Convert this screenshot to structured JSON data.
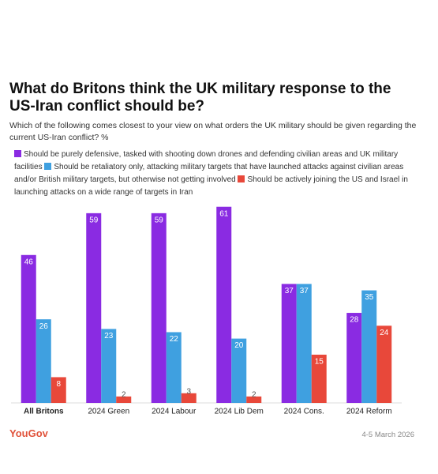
{
  "chart_data": {
    "type": "bar",
    "title": "What do Britons think the UK military response to the US-Iran conflict should be?",
    "subtitle": "Which of the following comes closest to your view on what orders the UK military should be given regarding the current US-Iran conflict? %",
    "categories": [
      "All Britons",
      "2024 Green",
      "2024 Labour",
      "2024 Lib Dem",
      "2024 Cons.",
      "2024 Reform"
    ],
    "series": [
      {
        "name": "Should be purely defensive, tasked with shooting down drones and defending civilian areas and UK military facilities",
        "color": "#8a2be2",
        "values": [
          46,
          59,
          59,
          61,
          37,
          28
        ]
      },
      {
        "name": "Should be retaliatory only, attacking military targets that have launched attacks against civilian areas and/or British military targets, but otherwise not getting involved",
        "color": "#3fa0e0",
        "values": [
          26,
          23,
          22,
          20,
          37,
          35
        ]
      },
      {
        "name": "Should be actively joining the US and Israel in launching attacks on a wide range of targets in Iran",
        "color": "#e8483a",
        "values": [
          8,
          2,
          3,
          2,
          15,
          24
        ]
      }
    ],
    "source": "YouGov",
    "date": "4-5 March 2026"
  }
}
